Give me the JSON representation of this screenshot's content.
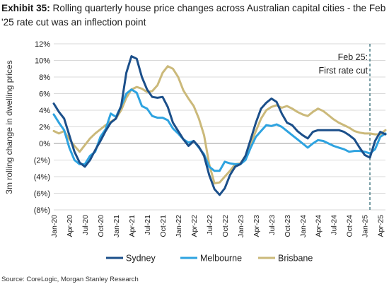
{
  "figure": {
    "exhibit_label": "Exhibit 35:",
    "title": "Rolling quarterly house price changes across Australian capital cities - the Feb '25 rate cut was an inflection point",
    "source": "Source: CoreLogic, Morgan Stanley Research"
  },
  "chart_data": {
    "type": "line",
    "title": "Rolling quarterly house price changes across Australian capital cities - the Feb '25 rate cut was an inflection point",
    "xlabel": "",
    "ylabel": "3m rolling change in dwelling prices",
    "ylim": [
      -8,
      12
    ],
    "yticks": [
      -8,
      -6,
      -4,
      -2,
      0,
      2,
      4,
      6,
      8,
      10,
      12
    ],
    "ytick_labels": [
      "(8%)",
      "(6%)",
      "(4%)",
      "(2%)",
      "0%",
      "2%",
      "4%",
      "6%",
      "8%",
      "10%",
      "12%"
    ],
    "x_start": "Jan-20",
    "x_end": "May-25",
    "xticks": [
      "Jan-20",
      "Apr-20",
      "Jul-20",
      "Oct-20",
      "Jan-21",
      "Apr-21",
      "Jul-21",
      "Oct-21",
      "Jan-22",
      "Apr-22",
      "Jul-22",
      "Oct-22",
      "Jan-23",
      "Apr-23",
      "Jul-23",
      "Oct-23",
      "Jan-24",
      "Apr-24",
      "Jul-24",
      "Oct-24",
      "Jan-25",
      "Apr-25"
    ],
    "grid": true,
    "legend_placement": "bottom",
    "annotation": {
      "text_lines": [
        "Feb 25:",
        "First rate cut"
      ],
      "x": "Feb-25",
      "style": "dashed vertical line"
    },
    "colors": {
      "Sydney": "#1b4f8a",
      "Melbourne": "#2ea3e0",
      "Brisbane": "#cbb97a",
      "annotation": "#1f5f6a",
      "grid": "#d9d9d9"
    },
    "series": [
      {
        "name": "Sydney",
        "x": [
          "Jan-20",
          "Feb-20",
          "Mar-20",
          "Apr-20",
          "May-20",
          "Jun-20",
          "Jul-20",
          "Aug-20",
          "Sep-20",
          "Oct-20",
          "Nov-20",
          "Dec-20",
          "Jan-21",
          "Feb-21",
          "Mar-21",
          "Apr-21",
          "May-21",
          "Jun-21",
          "Jul-21",
          "Aug-21",
          "Sep-21",
          "Oct-21",
          "Nov-21",
          "Dec-21",
          "Jan-22",
          "Feb-22",
          "Mar-22",
          "Apr-22",
          "May-22",
          "Jun-22",
          "Jul-22",
          "Aug-22",
          "Sep-22",
          "Oct-22",
          "Nov-22",
          "Dec-22",
          "Jan-23",
          "Feb-23",
          "Mar-23",
          "Apr-23",
          "May-23",
          "Jun-23",
          "Jul-23",
          "Aug-23",
          "Sep-23",
          "Oct-23",
          "Nov-23",
          "Dec-23",
          "Jan-24",
          "Feb-24",
          "Mar-24",
          "Apr-24",
          "May-24",
          "Jun-24",
          "Jul-24",
          "Aug-24",
          "Sep-24",
          "Oct-24",
          "Nov-24",
          "Dec-24",
          "Jan-25",
          "Feb-25",
          "Mar-25",
          "Apr-25",
          "May-25"
        ],
        "values": [
          4.8,
          3.8,
          3.0,
          1.0,
          -1.0,
          -2.3,
          -2.8,
          -2.0,
          -0.8,
          0.3,
          1.5,
          2.5,
          3.0,
          4.5,
          8.5,
          10.5,
          10.2,
          8.0,
          6.5,
          5.6,
          5.5,
          5.6,
          4.4,
          2.5,
          1.5,
          0.5,
          -0.3,
          0.3,
          -0.4,
          -1.5,
          -3.8,
          -5.5,
          -6.2,
          -5.4,
          -3.8,
          -2.8,
          -2.5,
          -1.5,
          0.5,
          2.5,
          4.2,
          4.9,
          5.4,
          5.0,
          3.6,
          2.5,
          2.2,
          1.5,
          1.0,
          0.6,
          1.4,
          1.6,
          1.6,
          1.6,
          1.6,
          1.6,
          1.4,
          1.0,
          0.5,
          -0.5,
          -1.4,
          -1.7,
          0.3,
          1.4,
          1.1
        ]
      },
      {
        "name": "Melbourne",
        "x": [
          "Jan-20",
          "Feb-20",
          "Mar-20",
          "Apr-20",
          "May-20",
          "Jun-20",
          "Jul-20",
          "Aug-20",
          "Sep-20",
          "Oct-20",
          "Nov-20",
          "Dec-20",
          "Jan-21",
          "Feb-21",
          "Mar-21",
          "Apr-21",
          "May-21",
          "Jun-21",
          "Jul-21",
          "Aug-21",
          "Sep-21",
          "Oct-21",
          "Nov-21",
          "Dec-21",
          "Jan-22",
          "Feb-22",
          "Mar-22",
          "Apr-22",
          "May-22",
          "Jun-22",
          "Jul-22",
          "Aug-22",
          "Sep-22",
          "Oct-22",
          "Nov-22",
          "Dec-22",
          "Jan-23",
          "Feb-23",
          "Mar-23",
          "Apr-23",
          "May-23",
          "Jun-23",
          "Jul-23",
          "Aug-23",
          "Sep-23",
          "Oct-23",
          "Nov-23",
          "Dec-23",
          "Jan-24",
          "Feb-24",
          "Mar-24",
          "Apr-24",
          "May-24",
          "Jun-24",
          "Jul-24",
          "Aug-24",
          "Sep-24",
          "Oct-24",
          "Nov-24",
          "Dec-24",
          "Jan-25",
          "Feb-25",
          "Mar-25",
          "Apr-25",
          "May-25"
        ],
        "values": [
          3.5,
          2.5,
          1.6,
          -0.5,
          -2.0,
          -2.5,
          -2.5,
          -1.5,
          -1.0,
          0.8,
          1.7,
          3.6,
          3.2,
          4.5,
          6.0,
          6.5,
          6.1,
          4.5,
          4.2,
          3.3,
          3.1,
          3.1,
          2.8,
          1.8,
          1.2,
          0.5,
          0.1,
          0.3,
          -0.5,
          -1.3,
          -2.8,
          -3.3,
          -3.3,
          -2.2,
          -2.4,
          -2.5,
          -2.5,
          -2.0,
          -0.5,
          0.8,
          1.5,
          2.2,
          2.1,
          2.3,
          2.0,
          1.5,
          1.0,
          0.5,
          0,
          -0.5,
          0,
          0.4,
          0.3,
          0,
          -0.3,
          -0.5,
          -0.7,
          -1.0,
          -0.9,
          -0.9,
          -1.0,
          -1.2,
          -0.7,
          0.8,
          1.2
        ]
      },
      {
        "name": "Brisbane",
        "x": [
          "Jan-20",
          "Feb-20",
          "Mar-20",
          "Apr-20",
          "May-20",
          "Jun-20",
          "Jul-20",
          "Aug-20",
          "Sep-20",
          "Oct-20",
          "Nov-20",
          "Dec-20",
          "Jan-21",
          "Feb-21",
          "Mar-21",
          "Apr-21",
          "May-21",
          "Jun-21",
          "Jul-21",
          "Aug-21",
          "Sep-21",
          "Oct-21",
          "Nov-21",
          "Dec-21",
          "Jan-22",
          "Feb-22",
          "Mar-22",
          "Apr-22",
          "May-22",
          "Jun-22",
          "Jul-22",
          "Aug-22",
          "Sep-22",
          "Oct-22",
          "Nov-22",
          "Dec-22",
          "Jan-23",
          "Feb-23",
          "Mar-23",
          "Apr-23",
          "May-23",
          "Jun-23",
          "Jul-23",
          "Aug-23",
          "Sep-23",
          "Oct-23",
          "Nov-23",
          "Dec-23",
          "Jan-24",
          "Feb-24",
          "Mar-24",
          "Apr-24",
          "May-24",
          "Jun-24",
          "Jul-24",
          "Aug-24",
          "Sep-24",
          "Oct-24",
          "Nov-24",
          "Dec-24",
          "Jan-25",
          "Feb-25",
          "Mar-25",
          "Apr-25",
          "May-25"
        ],
        "values": [
          1.5,
          1.2,
          1.5,
          0.5,
          -0.3,
          -1.0,
          -0.2,
          0.6,
          1.2,
          1.7,
          2.2,
          2.6,
          3.0,
          4.0,
          5.5,
          6.5,
          6.8,
          6.6,
          6.2,
          6.3,
          7.0,
          8.5,
          9.3,
          9.0,
          8.0,
          6.4,
          5.4,
          4.5,
          3.0,
          1.0,
          -2.5,
          -4.8,
          -4.7,
          -4.0,
          -3.3,
          -2.5,
          -2.4,
          -1.5,
          0,
          1.5,
          3.0,
          4.0,
          4.4,
          4.6,
          4.3,
          4.5,
          4.2,
          3.8,
          3.5,
          3.3,
          3.8,
          4.2,
          3.9,
          3.4,
          2.9,
          2.5,
          2.2,
          1.9,
          1.5,
          1.3,
          1.2,
          1.2,
          1.1,
          1.1,
          1.6
        ]
      }
    ]
  }
}
